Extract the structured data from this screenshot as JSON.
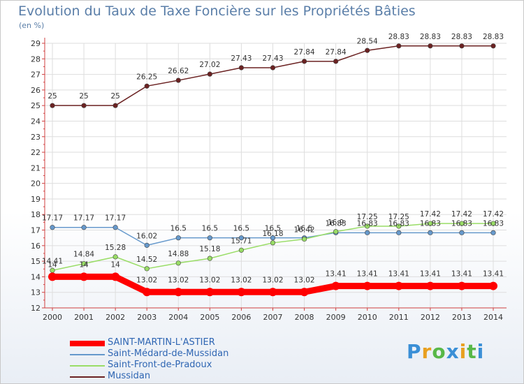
{
  "header": {
    "title": "Evolution du Taux de Taxe Foncière sur les Propriétés Bâties",
    "unit": "(en %)"
  },
  "chart_data": {
    "type": "line",
    "x": [
      "2000",
      "2001",
      "2002",
      "2003",
      "2004",
      "2005",
      "2006",
      "2007",
      "2008",
      "2009",
      "2010",
      "2011",
      "2012",
      "2013",
      "2014"
    ],
    "ylim": [
      12,
      29
    ],
    "yticks": [
      12,
      13,
      14,
      15,
      16,
      17,
      18,
      19,
      20,
      21,
      22,
      23,
      24,
      25,
      26,
      27,
      28,
      29
    ],
    "grid": true,
    "legend_position": "bottom-left",
    "series": [
      {
        "name": "SAINT-MARTIN-L'ASTIER",
        "color": "#ff0000",
        "values": [
          14,
          14,
          14,
          13.02,
          13.02,
          13.02,
          13.02,
          13.02,
          13.02,
          13.41,
          13.41,
          13.41,
          13.41,
          13.41,
          13.41
        ],
        "labels": [
          "14",
          "14",
          "14",
          "13.02",
          "13.02",
          "13.02",
          "13.02",
          "13.02",
          "13.02",
          "13.41",
          "13.41",
          "13.41",
          "13.41",
          "13.41",
          "13.41"
        ]
      },
      {
        "name": "Saint-Médard-de-Mussidan",
        "color": "#6699cc",
        "values": [
          17.17,
          17.17,
          17.17,
          16.02,
          16.5,
          16.5,
          16.5,
          16.5,
          16.5,
          16.83,
          16.83,
          16.83,
          16.83,
          16.83,
          16.83
        ],
        "labels": [
          "17.17",
          "17.17",
          "17.17",
          "16.02",
          "16.5",
          "16.5",
          "16.5",
          "16.5",
          "16.5",
          "16.83",
          "16.83",
          "16.83",
          "16.83",
          "16.83",
          "16.83"
        ]
      },
      {
        "name": "Saint-Front-de-Pradoux",
        "color": "#99dd66",
        "values": [
          14.41,
          14.84,
          15.28,
          14.52,
          14.88,
          15.18,
          15.71,
          16.18,
          16.42,
          16.9,
          17.25,
          17.25,
          17.42,
          17.42,
          17.42
        ],
        "labels": [
          "14.41",
          "14.84",
          "15.28",
          "14.52",
          "14.88",
          "15.18",
          "15.71",
          "16.18",
          "16.42",
          "16.9",
          "17.25",
          "17.25",
          "17.42",
          "17.42",
          "17.42"
        ]
      },
      {
        "name": "Mussidan",
        "color": "#6b2222",
        "values": [
          25,
          25,
          25,
          26.25,
          26.62,
          27.02,
          27.43,
          27.43,
          27.84,
          27.84,
          28.54,
          28.83,
          28.83,
          28.83,
          28.83
        ],
        "labels": [
          "25",
          "25",
          "25",
          "26.25",
          "26.62",
          "27.02",
          "27.43",
          "27.43",
          "27.84",
          "27.84",
          "28.54",
          "28.83",
          "28.83",
          "28.83",
          "28.83"
        ]
      }
    ]
  },
  "logo": {
    "text": "Proxiti"
  }
}
